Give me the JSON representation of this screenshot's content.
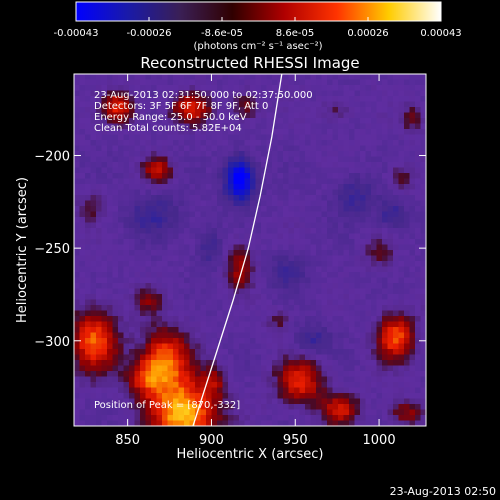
{
  "chart_data": {
    "type": "heatmap",
    "title": "Reconstructed RHESSI Image",
    "xlabel": "Heliocentric X (arcsec)",
    "ylabel": "Heliocentric Y (arcsec)",
    "x_ticks": [
      850,
      900,
      950,
      1000
    ],
    "y_ticks": [
      -200,
      -250,
      -300
    ],
    "xlim": [
      818,
      1028
    ],
    "ylim": [
      -346,
      -156
    ],
    "colorbar": {
      "ticks": [
        "-0.00043",
        "-0.00026",
        "-8.6e-05",
        "8.6e-05",
        "0.00026",
        "0.00043"
      ],
      "unit_label": "(photons cm⁻² s⁻¹ asec⁻²)",
      "range": [
        -0.00043,
        0.00043
      ],
      "colors": [
        "#0000ff",
        "#1a1aa8",
        "#3a1f55",
        "#300000",
        "#b00000",
        "#ff3300",
        "#ffcc00",
        "#ffffff"
      ]
    },
    "info_lines": [
      "23-Aug-2013 02:31:50.000 to 02:37:50.000",
      "Detectors: 3F 5F 6F 7F 8F 9F, Att 0",
      "Energy Range: 25.0 - 50.0 keV",
      "Clean     Total counts: 5.82E+04"
    ],
    "position_label": "Position of Peak = [870,-332]",
    "peak": [
      870,
      -332
    ],
    "limb_curve": [
      [
        889,
        -346
      ],
      [
        901,
        -312
      ],
      [
        913,
        -278
      ],
      [
        922,
        -250
      ],
      [
        929,
        -222
      ],
      [
        936,
        -190
      ],
      [
        942,
        -156
      ]
    ],
    "hotspots": [
      {
        "x": 884,
        "y": -340,
        "value": 0.00043,
        "sx": 14,
        "sy": 13
      },
      {
        "x": 873,
        "y": -310,
        "value": 0.00032,
        "sx": 10,
        "sy": 12
      },
      {
        "x": 830,
        "y": -300,
        "value": 0.00033,
        "sx": 10,
        "sy": 12
      },
      {
        "x": 860,
        "y": -320,
        "value": 0.00022,
        "sx": 8,
        "sy": 8
      },
      {
        "x": 1010,
        "y": -298,
        "value": 0.00032,
        "sx": 8,
        "sy": 9
      },
      {
        "x": 953,
        "y": -322,
        "value": 0.00028,
        "sx": 10,
        "sy": 9
      },
      {
        "x": 977,
        "y": -337,
        "value": 0.00024,
        "sx": 8,
        "sy": 6
      },
      {
        "x": 1016,
        "y": -339,
        "value": 0.00018,
        "sx": 7,
        "sy": 5
      },
      {
        "x": 917,
        "y": -260,
        "value": 0.0002,
        "sx": 6,
        "sy": 9
      },
      {
        "x": 845,
        "y": -174,
        "value": 0.00027,
        "sx": 7,
        "sy": 6
      },
      {
        "x": 888,
        "y": -175,
        "value": 0.00025,
        "sx": 9,
        "sy": 6
      },
      {
        "x": 920,
        "y": -173,
        "value": 0.00016,
        "sx": 6,
        "sy": 6
      },
      {
        "x": 868,
        "y": -208,
        "value": 0.00024,
        "sx": 6,
        "sy": 5
      },
      {
        "x": 1013,
        "y": -212,
        "value": 0.00014,
        "sx": 5,
        "sy": 5
      },
      {
        "x": 828,
        "y": -228,
        "value": 0.00012,
        "sx": 6,
        "sy": 6
      },
      {
        "x": 862,
        "y": -278,
        "value": 0.00014,
        "sx": 6,
        "sy": 5
      },
      {
        "x": 1000,
        "y": -253,
        "value": 0.00012,
        "sx": 6,
        "sy": 6
      },
      {
        "x": 1020,
        "y": -180,
        "value": 0.00013,
        "sx": 5,
        "sy": 6
      },
      {
        "x": 975,
        "y": -175,
        "value": 0.00011,
        "sx": 6,
        "sy": 5
      },
      {
        "x": 902,
        "y": -322,
        "value": 0.00014,
        "sx": 5,
        "sy": 6
      },
      {
        "x": 940,
        "y": -290,
        "value": 0.00011,
        "sx": 5,
        "sy": 5
      }
    ],
    "coldspots": [
      {
        "x": 917,
        "y": -213,
        "value": -0.00043,
        "sx": 6,
        "sy": 8
      },
      {
        "x": 866,
        "y": -232,
        "value": -0.00012,
        "sx": 12,
        "sy": 8
      },
      {
        "x": 960,
        "y": -300,
        "value": -0.00013,
        "sx": 8,
        "sy": 6
      },
      {
        "x": 985,
        "y": -222,
        "value": -0.00012,
        "sx": 9,
        "sy": 8
      },
      {
        "x": 1008,
        "y": -232,
        "value": -0.00014,
        "sx": 6,
        "sy": 6
      },
      {
        "x": 899,
        "y": -250,
        "value": -0.00011,
        "sx": 6,
        "sy": 8
      },
      {
        "x": 945,
        "y": -262,
        "value": -0.0001,
        "sx": 9,
        "sy": 7
      }
    ]
  },
  "footer_timestamp": "23-Aug-2013 02:50"
}
